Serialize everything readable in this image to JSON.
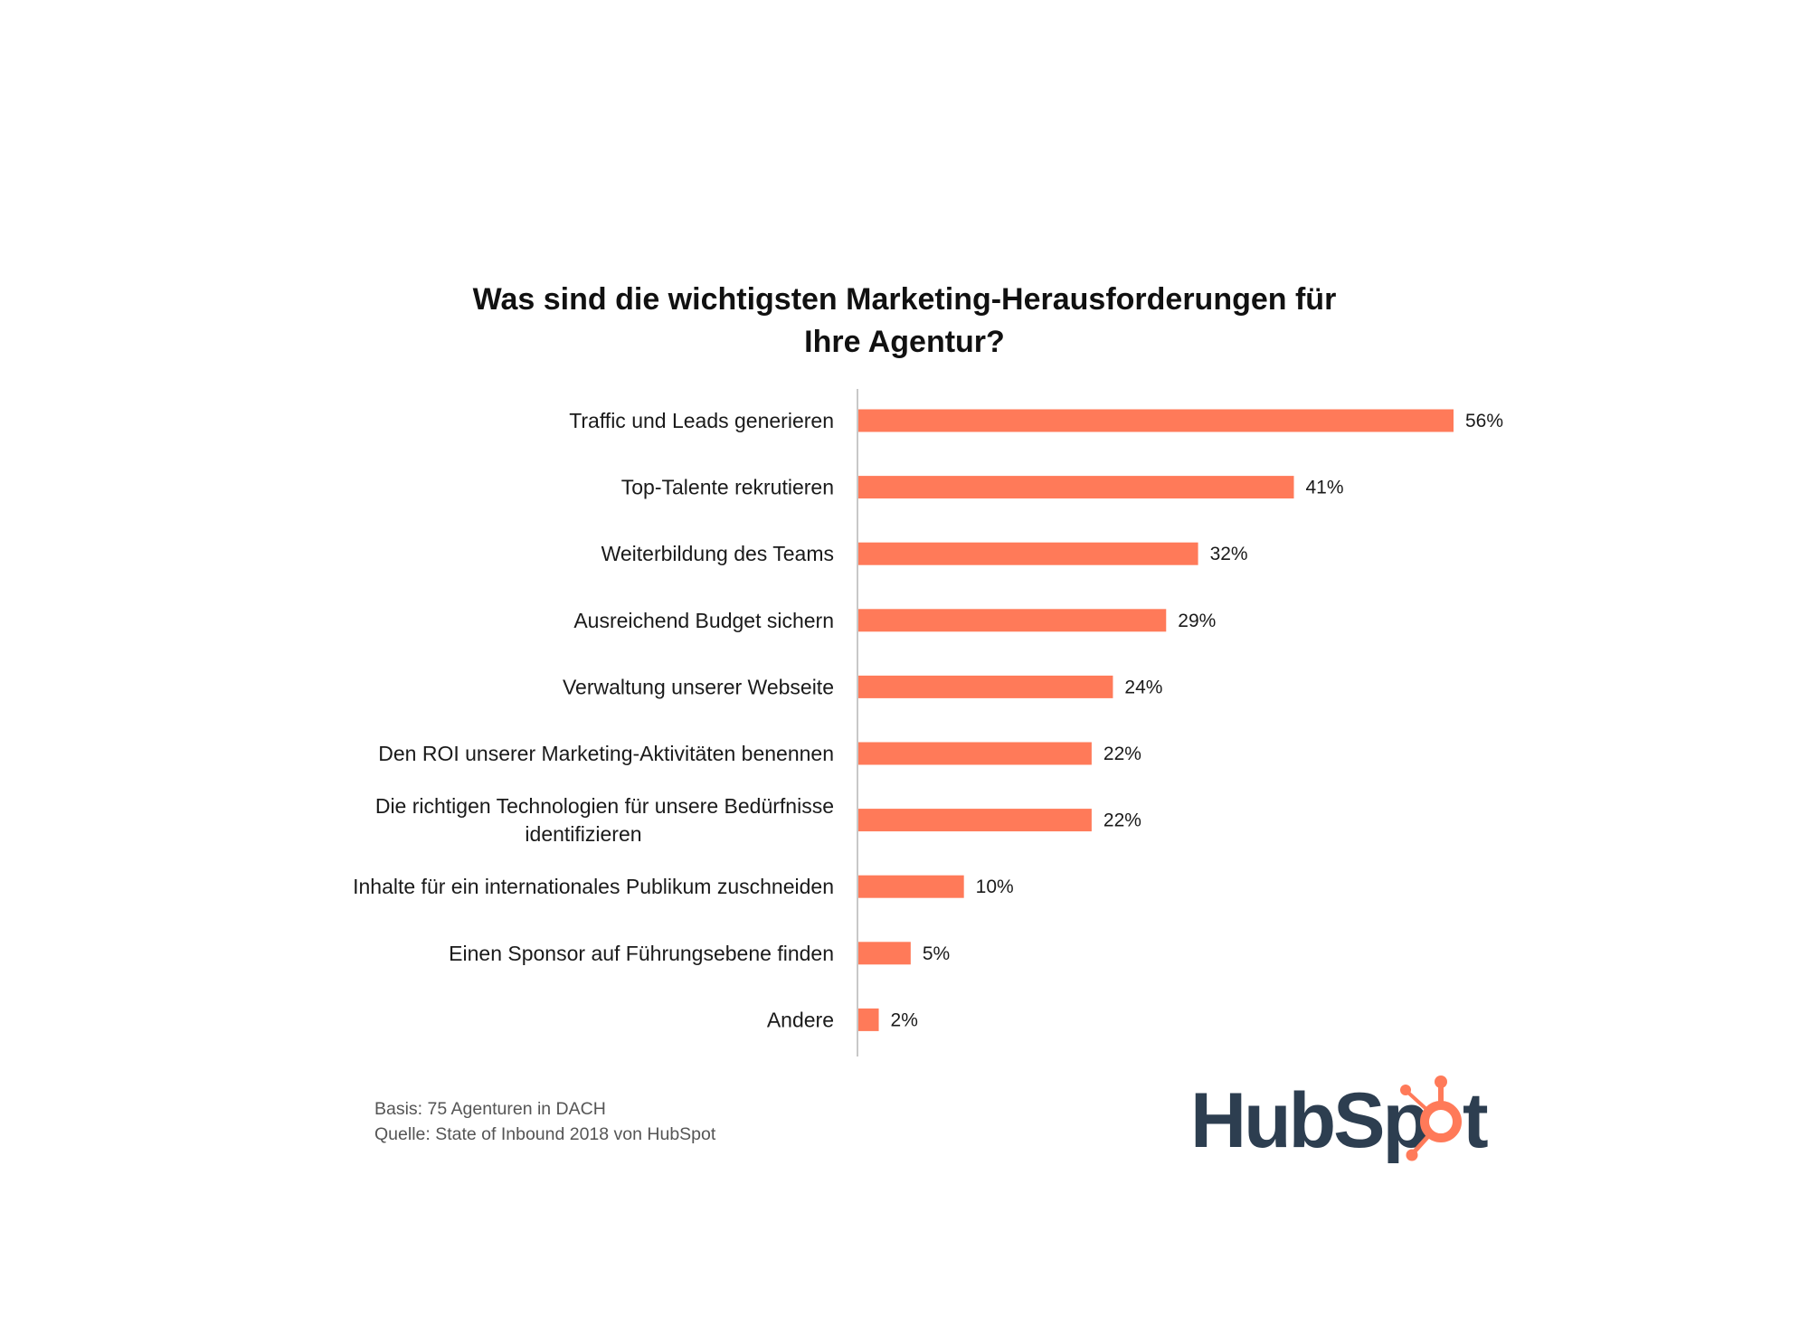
{
  "chart_data": {
    "type": "bar",
    "orientation": "horizontal",
    "title_lines": [
      "Was sind die wichtigsten Marketing-Herausforderungen für",
      "Ihre Agentur?"
    ],
    "categories": [
      [
        "Traffic und Leads generieren"
      ],
      [
        "Top-Talente rekrutieren"
      ],
      [
        "Weiterbildung des Teams"
      ],
      [
        "Ausreichend Budget sichern"
      ],
      [
        "Verwaltung unserer Webseite"
      ],
      [
        "Den ROI unserer Marketing-Aktivitäten benennen"
      ],
      [
        "Die richtigen Technologien für unsere Bedürfnisse",
        "identifizieren"
      ],
      [
        "Inhalte für ein internationales Publikum zuschneiden"
      ],
      [
        "Einen Sponsor auf Führungsebene finden"
      ],
      [
        "Andere"
      ]
    ],
    "values": [
      56,
      41,
      32,
      29,
      24,
      22,
      22,
      10,
      5,
      2
    ],
    "value_labels": [
      "56%",
      "41%",
      "32%",
      "29%",
      "24%",
      "22%",
      "22%",
      "10%",
      "5%",
      "2%"
    ],
    "unit": "%",
    "xlim": [
      0,
      56
    ],
    "grid": false,
    "legend": "none",
    "colors": {
      "bar": "#ff7a59",
      "axis": "#c8c8c8"
    }
  },
  "footnotes": {
    "basis": "Basis: 75 Agenturen in DACH",
    "source": "Quelle: State of Inbound 2018 von HubSpot"
  },
  "logo": {
    "text_left": "HubSp",
    "text_right": "t",
    "icon": "sprocket-icon",
    "colors": {
      "text": "#2d3e50",
      "sprocket": "#ff7a59"
    }
  }
}
